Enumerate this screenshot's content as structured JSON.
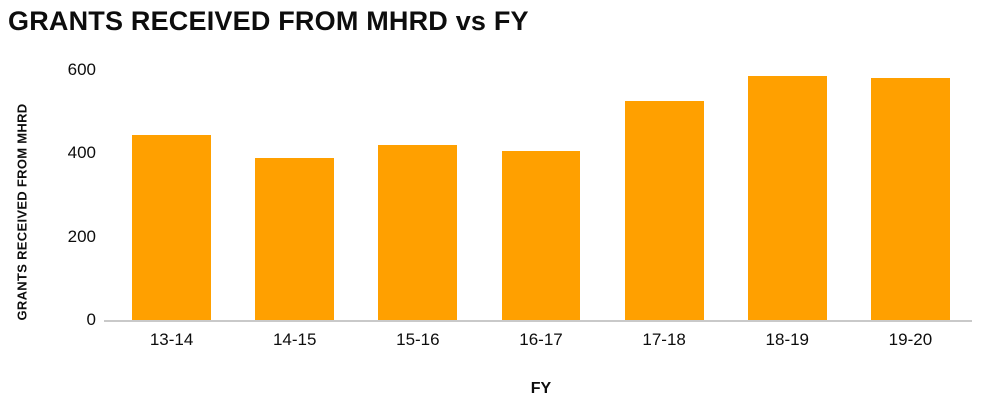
{
  "title": "GRANTS RECEIVED FROM MHRD vs FY",
  "chart_data": {
    "type": "bar",
    "title": "GRANTS RECEIVED FROM MHRD vs FY",
    "categories": [
      "13-14",
      "14-15",
      "15-16",
      "16-17",
      "17-18",
      "18-19",
      "19-20"
    ],
    "values": [
      445,
      390,
      420,
      405,
      525,
      585,
      580
    ],
    "xlabel": "FY",
    "ylabel": "GRANTS RECEIVED FROM MHRD",
    "ylim": [
      0,
      600
    ],
    "yticks": [
      0,
      200,
      400,
      600
    ],
    "bar_color": "#FFA000",
    "axis_line_color": "#c9c9c9",
    "grid": false,
    "legend": false
  }
}
